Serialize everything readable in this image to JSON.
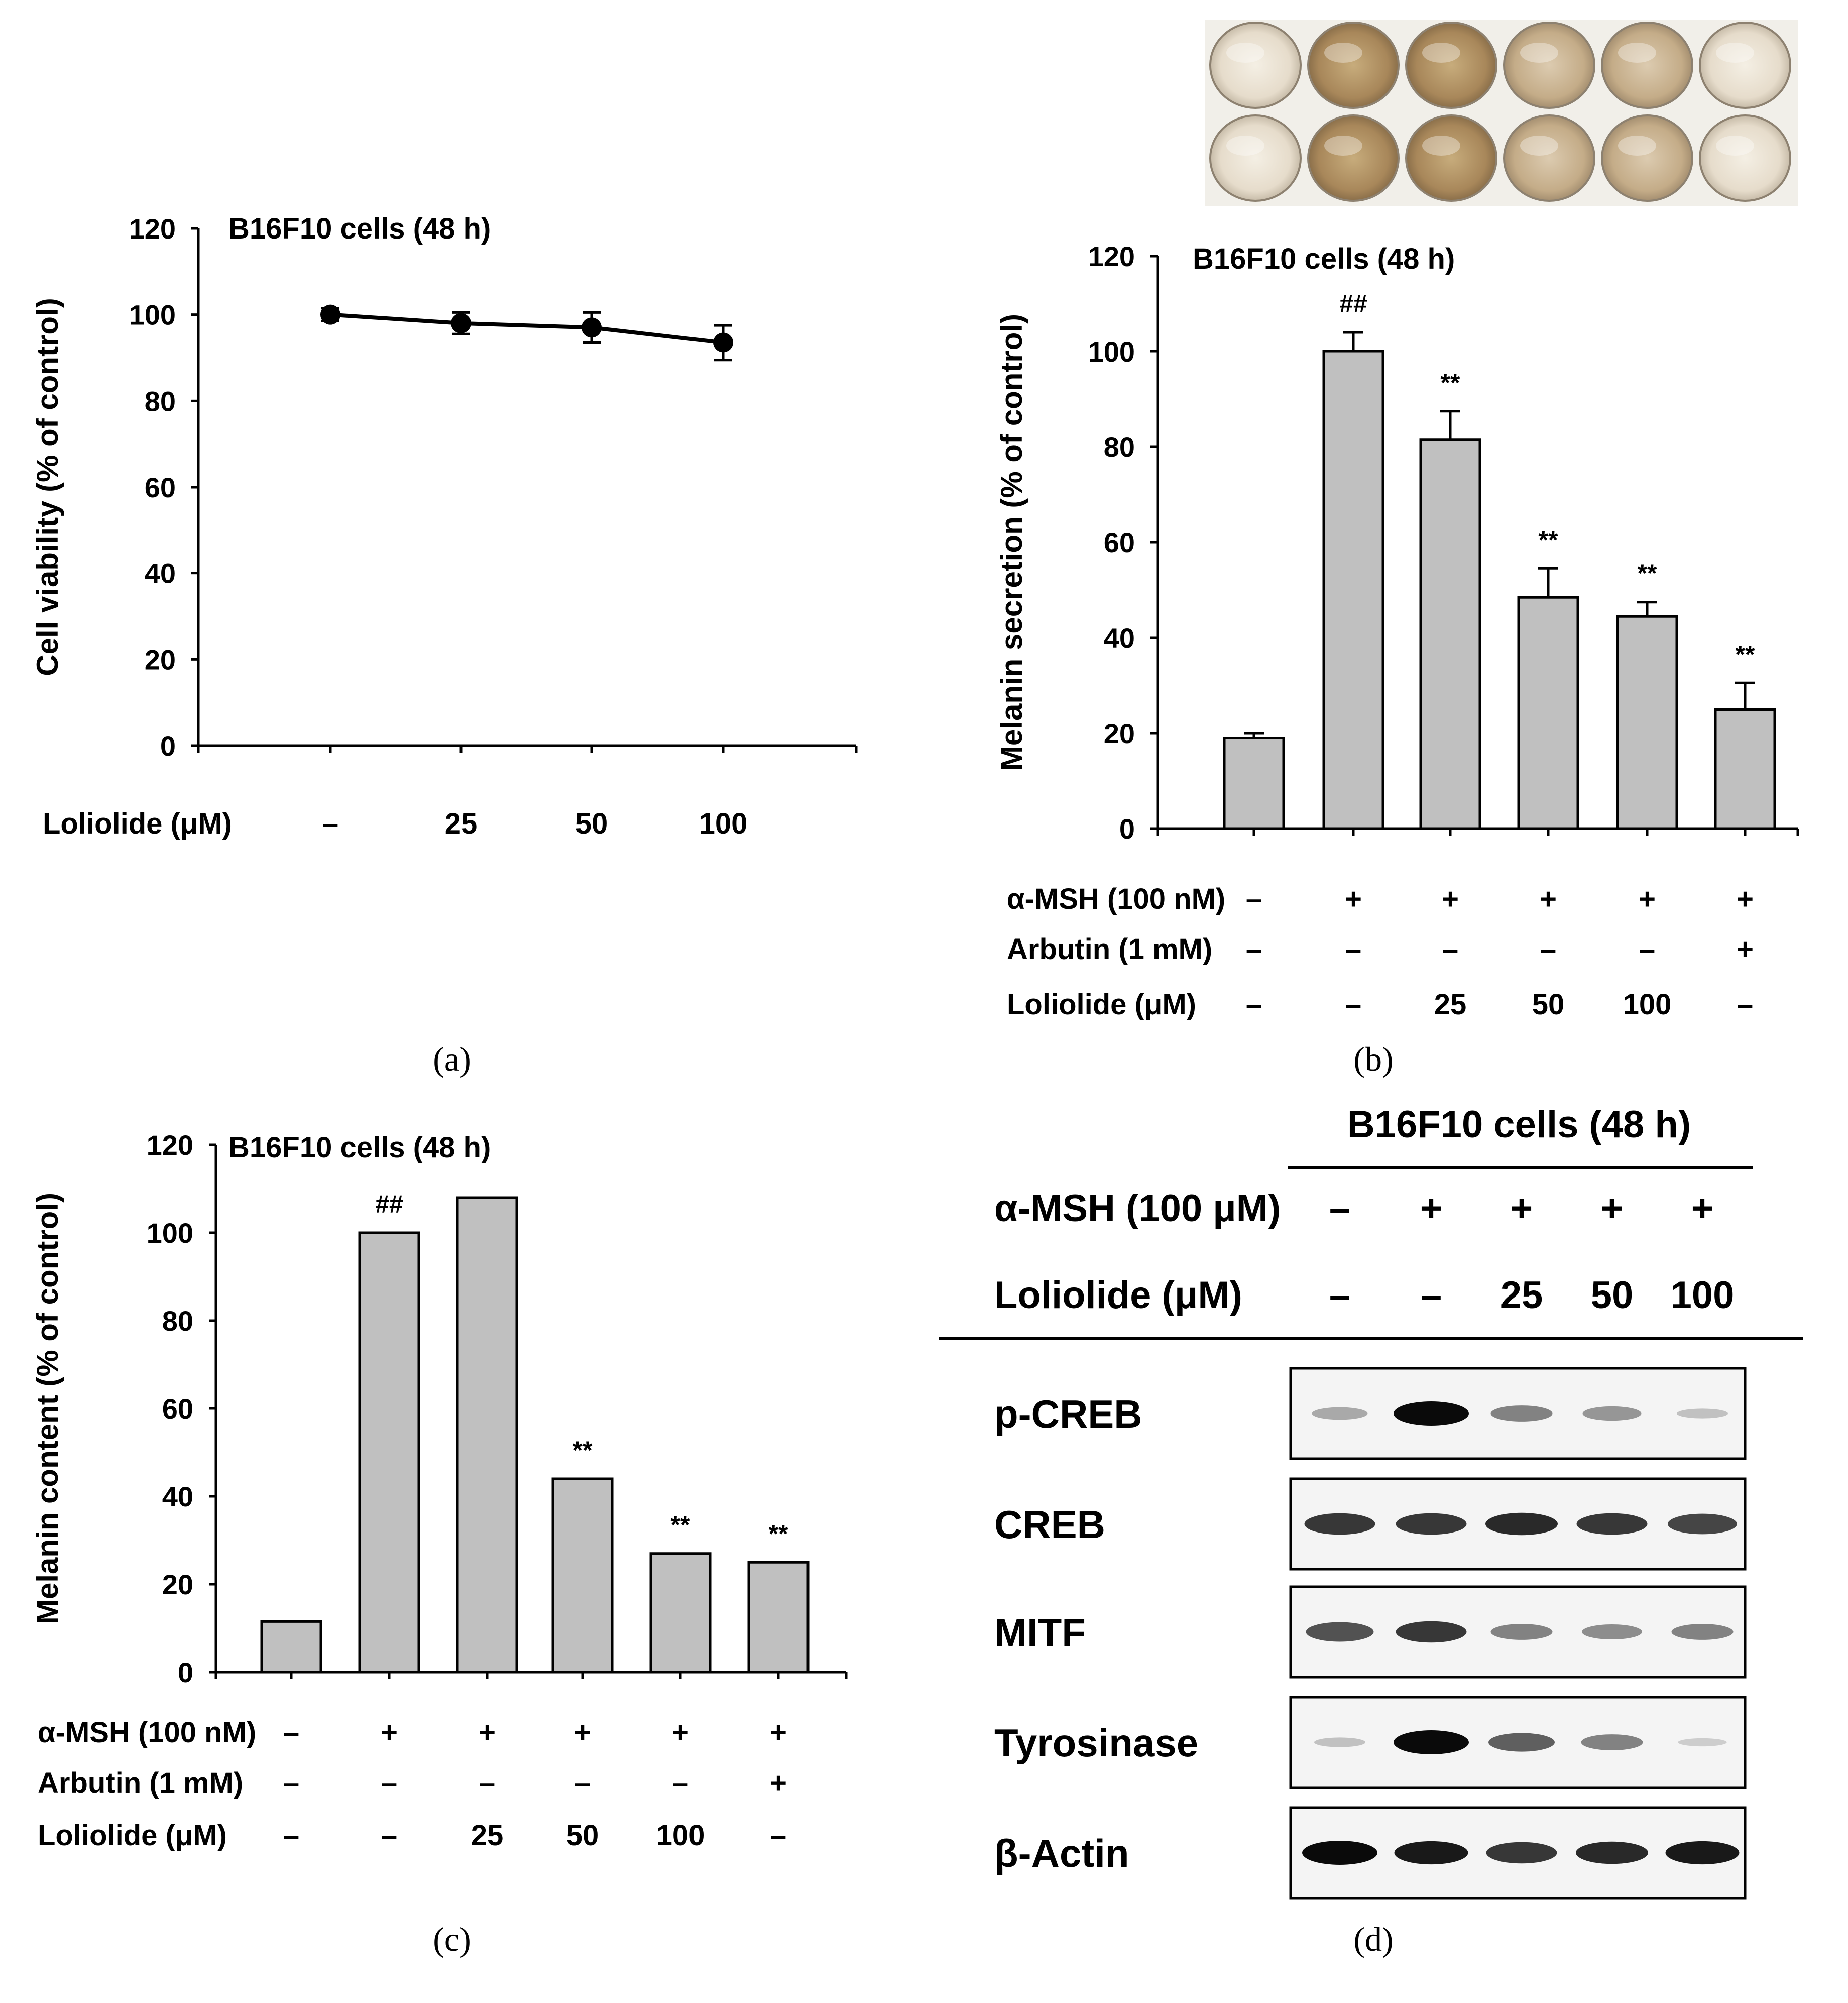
{
  "colors": {
    "bar_fill": "#c0c0c0",
    "line": "#000000",
    "plate_bg": "#f1efe9"
  },
  "panels": {
    "a": "(a)",
    "b": "(b)",
    "c": "(c)",
    "d": "(d)"
  },
  "chart_data": [
    {
      "panel": "a",
      "type": "line",
      "title": "B16F10 cells (48 h)",
      "ylabel": "Cell viability (% of control)",
      "ylim": [
        0,
        120
      ],
      "yticks": [
        0,
        20,
        40,
        60,
        80,
        100,
        120
      ],
      "condition_rows": [
        {
          "label": "Loliolide (μM)",
          "values": [
            "–",
            "25",
            "50",
            "100"
          ]
        }
      ],
      "series": [
        {
          "name": "Cell viability",
          "values": [
            100,
            98,
            97,
            93.5
          ],
          "errors": [
            1.5,
            2.5,
            3.5,
            4
          ]
        }
      ]
    },
    {
      "panel": "b",
      "type": "bar",
      "title": "B16F10 cells (48 h)",
      "ylabel": "Melanin secretion  (% of control)",
      "ylim": [
        0,
        120
      ],
      "yticks": [
        0,
        20,
        40,
        60,
        80,
        100,
        120
      ],
      "values": [
        19,
        100,
        81.5,
        48.5,
        44.5,
        25
      ],
      "errors": [
        1,
        4,
        6,
        6,
        3,
        5.5
      ],
      "significance": [
        "",
        "##",
        "**",
        "**",
        "**",
        "**"
      ],
      "condition_rows": [
        {
          "label": "α-MSH (100 nM)",
          "values": [
            "–",
            "+",
            "+",
            "+",
            "+",
            "+"
          ]
        },
        {
          "label": "Arbutin (1 mM)",
          "values": [
            "–",
            "–",
            "–",
            "–",
            "–",
            "+"
          ]
        },
        {
          "label": "Loliolide (μM)",
          "values": [
            "–",
            "–",
            "25",
            "50",
            "100",
            "–"
          ]
        }
      ]
    },
    {
      "panel": "c",
      "type": "bar",
      "title": "B16F10 cells (48 h)",
      "ylabel": "Melanin content (% of control)",
      "ylim": [
        0,
        120
      ],
      "yticks": [
        0,
        20,
        40,
        60,
        80,
        100,
        120
      ],
      "values": [
        11.5,
        100,
        108,
        44,
        27,
        25
      ],
      "errors": [
        0,
        0,
        0,
        0,
        0,
        0
      ],
      "significance": [
        "",
        "##",
        "",
        "**",
        "**",
        "**"
      ],
      "condition_rows": [
        {
          "label": "α-MSH (100 nM)",
          "values": [
            "–",
            "+",
            "+",
            "+",
            "+",
            "+"
          ]
        },
        {
          "label": "Arbutin (1 mM)",
          "values": [
            "–",
            "–",
            "–",
            "–",
            "–",
            "+"
          ]
        },
        {
          "label": "Loliolide (μM)",
          "values": [
            "–",
            "–",
            "25",
            "50",
            "100",
            "–"
          ]
        }
      ]
    }
  ],
  "western_blot": {
    "title": "B16F10 cells (48 h)",
    "condition_rows": [
      {
        "label": "α-MSH (100 μM)",
        "values": [
          "–",
          "+",
          "+",
          "+",
          "+"
        ]
      },
      {
        "label": "Loliolide  (μM)",
        "values": [
          "–",
          "–",
          "25",
          "50",
          "100"
        ]
      }
    ],
    "proteins": [
      {
        "name": "p-CREB",
        "intensities": [
          0.35,
          1.0,
          0.55,
          0.45,
          0.2
        ]
      },
      {
        "name": "CREB",
        "intensities": [
          0.85,
          0.85,
          0.9,
          0.85,
          0.8
        ]
      },
      {
        "name": "MITF",
        "intensities": [
          0.75,
          0.85,
          0.55,
          0.5,
          0.55
        ]
      },
      {
        "name": "Tyrosinase",
        "intensities": [
          0.2,
          1.0,
          0.7,
          0.55,
          0.12
        ]
      },
      {
        "name": "β-Actin",
        "intensities": [
          1.0,
          0.95,
          0.85,
          0.9,
          0.95
        ]
      }
    ]
  }
}
